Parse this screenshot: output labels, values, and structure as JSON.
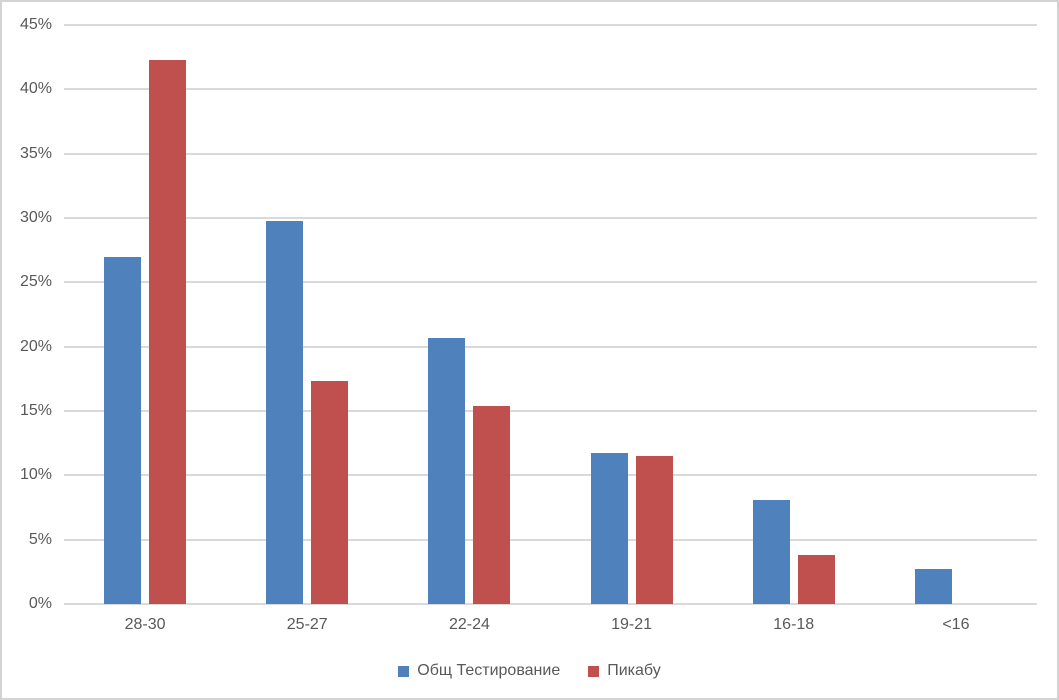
{
  "chart_data": {
    "type": "bar",
    "categories": [
      "28-30",
      "25-27",
      "22-24",
      "19-21",
      "16-18",
      "<16"
    ],
    "series": [
      {
        "name": "Общ Тестирование",
        "color": "#4F81BD",
        "values": [
          27.0,
          29.8,
          20.7,
          11.7,
          8.1,
          2.7
        ]
      },
      {
        "name": "Пикабу",
        "color": "#C0504D",
        "values": [
          42.3,
          17.3,
          15.4,
          11.5,
          3.8,
          0
        ]
      }
    ],
    "title": "",
    "xlabel": "",
    "ylabel": "",
    "ylim": [
      0,
      45
    ],
    "yticks": [
      0,
      5,
      10,
      15,
      20,
      25,
      30,
      35,
      40,
      45
    ],
    "ytick_labels": [
      "0%",
      "5%",
      "10%",
      "15%",
      "20%",
      "25%",
      "30%",
      "35%",
      "40%",
      "45%"
    ],
    "grid": true,
    "legend_position": "bottom"
  },
  "legend": {
    "items": [
      {
        "label": "Общ Тестирование",
        "color": "#4F81BD"
      },
      {
        "label": "Пикабу",
        "color": "#C0504D"
      }
    ]
  },
  "colors": {
    "background": "#FFFFFF",
    "gridline": "#D9D9D9",
    "axis_text": "#595959",
    "border": "#D3D3D3"
  }
}
